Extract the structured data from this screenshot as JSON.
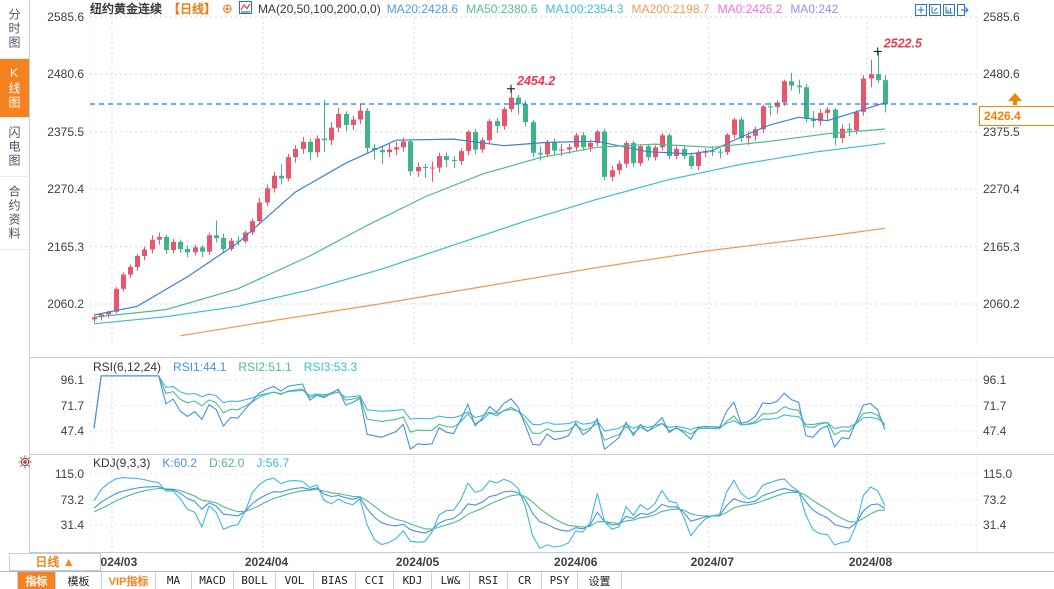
{
  "sidebar": {
    "items": [
      {
        "label": "分时图",
        "key": "time-chart",
        "active": false
      },
      {
        "label": "K线图",
        "key": "kline",
        "active": true
      },
      {
        "label": "闪电图",
        "key": "flash-chart",
        "active": false
      },
      {
        "label": "合约资料",
        "key": "contract-info",
        "active": false
      }
    ]
  },
  "header": {
    "title": "纽约黄金连续",
    "period_tag": "【日线】",
    "ma_formula": "MA(20,50,100,200,0,0)",
    "ma_labels": [
      {
        "text": "MA20:2428.6",
        "color": "#4f9cea"
      },
      {
        "text": "MA50:2380.6",
        "color": "#50c28e"
      },
      {
        "text": "MA100:2354.3",
        "color": "#3fc0d8"
      },
      {
        "text": "MA200:2198.7",
        "color": "#f59b51"
      },
      {
        "text": "MA0:2426.2",
        "color": "#ee71e4"
      },
      {
        "text": "MA0:242",
        "color": "#9b8cf0"
      }
    ],
    "toolbar_icons": [
      "crosshair-icon",
      "axis-zoom-icon",
      "axis-pan-icon",
      "exit-icon"
    ]
  },
  "chart_data": [
    {
      "type": "candlestick",
      "symbol": "纽约黄金连续",
      "interval": "日线",
      "price_axis": {
        "ticks": [
          2585.6,
          2480.6,
          2375.5,
          2270.4,
          2165.3,
          2060.2
        ]
      },
      "axis_tick_labels": [
        "2585.6",
        "2480.6",
        "2375.5",
        "2270.4",
        "2165.3",
        "2060.2"
      ],
      "x_labels": [
        "2024/03",
        "2024/04",
        "2024/05",
        "2024/06",
        "2024/07",
        "2024/08"
      ],
      "month_start_indices": [
        3,
        24,
        45,
        67,
        86,
        108
      ],
      "last_price": 2426.4,
      "last_price_label": "2426.4",
      "annotations": [
        {
          "text": "2454.2",
          "index": 58,
          "price": 2454.2
        },
        {
          "text": "2522.5",
          "index": 109,
          "price": 2522.5
        }
      ],
      "up_color": "#e8566b",
      "down_color": "#3db489",
      "candles": [
        [
          2032,
          2039,
          2026,
          2036
        ],
        [
          2036,
          2043,
          2030,
          2041
        ],
        [
          2041,
          2048,
          2035,
          2046
        ],
        [
          2046,
          2091,
          2043,
          2088
        ],
        [
          2088,
          2118,
          2083,
          2114
        ],
        [
          2114,
          2133,
          2108,
          2128
        ],
        [
          2128,
          2152,
          2121,
          2148
        ],
        [
          2148,
          2165,
          2140,
          2160
        ],
        [
          2160,
          2186,
          2153,
          2178
        ],
        [
          2178,
          2191,
          2169,
          2183
        ],
        [
          2183,
          2187,
          2152,
          2159
        ],
        [
          2159,
          2179,
          2153,
          2174
        ],
        [
          2174,
          2178,
          2154,
          2161
        ],
        [
          2161,
          2167,
          2146,
          2155
        ],
        [
          2155,
          2169,
          2149,
          2164
        ],
        [
          2164,
          2168,
          2146,
          2156
        ],
        [
          2156,
          2191,
          2150,
          2186
        ],
        [
          2186,
          2213,
          2173,
          2181
        ],
        [
          2181,
          2189,
          2154,
          2161
        ],
        [
          2161,
          2181,
          2157,
          2176
        ],
        [
          2176,
          2184,
          2167,
          2175
        ],
        [
          2175,
          2195,
          2171,
          2191
        ],
        [
          2191,
          2217,
          2186,
          2212
        ],
        [
          2212,
          2255,
          2207,
          2246
        ],
        [
          2246,
          2279,
          2239,
          2272
        ],
        [
          2272,
          2302,
          2264,
          2295
        ],
        [
          2295,
          2316,
          2279,
          2290
        ],
        [
          2290,
          2335,
          2285,
          2329
        ],
        [
          2329,
          2351,
          2319,
          2344
        ],
        [
          2344,
          2366,
          2335,
          2357
        ],
        [
          2357,
          2363,
          2323,
          2338
        ],
        [
          2338,
          2369,
          2329,
          2363
        ],
        [
          2363,
          2434,
          2339,
          2360
        ],
        [
          2360,
          2393,
          2351,
          2383
        ],
        [
          2383,
          2419,
          2375,
          2408
        ],
        [
          2408,
          2413,
          2377,
          2388
        ],
        [
          2388,
          2405,
          2379,
          2398
        ],
        [
          2398,
          2426,
          2389,
          2414
        ],
        [
          2414,
          2419,
          2337,
          2346
        ],
        [
          2346,
          2353,
          2325,
          2342
        ],
        [
          2342,
          2349,
          2317,
          2338
        ],
        [
          2338,
          2353,
          2329,
          2343
        ],
        [
          2343,
          2357,
          2333,
          2347
        ],
        [
          2347,
          2365,
          2339,
          2358
        ],
        [
          2358,
          2361,
          2295,
          2303
        ],
        [
          2303,
          2319,
          2293,
          2311
        ],
        [
          2311,
          2317,
          2291,
          2309
        ],
        [
          2309,
          2321,
          2284,
          2310
        ],
        [
          2310,
          2337,
          2301,
          2331
        ],
        [
          2331,
          2337,
          2311,
          2324
        ],
        [
          2324,
          2331,
          2309,
          2322
        ],
        [
          2322,
          2345,
          2315,
          2340
        ],
        [
          2340,
          2379,
          2333,
          2375
        ],
        [
          2375,
          2381,
          2335,
          2343
        ],
        [
          2343,
          2365,
          2337,
          2360
        ],
        [
          2360,
          2399,
          2353,
          2395
        ],
        [
          2395,
          2401,
          2373,
          2386
        ],
        [
          2386,
          2421,
          2379,
          2417
        ],
        [
          2417,
          2454.2,
          2411,
          2438
        ],
        [
          2438,
          2443,
          2407,
          2426
        ],
        [
          2426,
          2433,
          2385,
          2393
        ],
        [
          2393,
          2397,
          2329,
          2337
        ],
        [
          2337,
          2349,
          2323,
          2334
        ],
        [
          2334,
          2361,
          2329,
          2356
        ],
        [
          2356,
          2363,
          2333,
          2341
        ],
        [
          2341,
          2353,
          2331,
          2343
        ],
        [
          2343,
          2353,
          2335,
          2347
        ],
        [
          2347,
          2373,
          2341,
          2369
        ],
        [
          2369,
          2375,
          2341,
          2347
        ],
        [
          2347,
          2361,
          2339,
          2355
        ],
        [
          2355,
          2379,
          2349,
          2376
        ],
        [
          2376,
          2381,
          2287,
          2293
        ],
        [
          2293,
          2313,
          2285,
          2305
        ],
        [
          2305,
          2323,
          2297,
          2317
        ],
        [
          2317,
          2359,
          2309,
          2355
        ],
        [
          2355,
          2359,
          2311,
          2318
        ],
        [
          2318,
          2353,
          2313,
          2349
        ],
        [
          2349,
          2353,
          2323,
          2329
        ],
        [
          2329,
          2351,
          2323,
          2347
        ],
        [
          2347,
          2373,
          2341,
          2369
        ],
        [
          2369,
          2373,
          2325,
          2331
        ],
        [
          2331,
          2349,
          2325,
          2344
        ],
        [
          2344,
          2351,
          2325,
          2331
        ],
        [
          2331,
          2337,
          2307,
          2313
        ],
        [
          2313,
          2342,
          2305,
          2337
        ],
        [
          2337,
          2345,
          2329,
          2340
        ],
        [
          2340,
          2349,
          2331,
          2339
        ],
        [
          2339,
          2345,
          2327,
          2338
        ],
        [
          2338,
          2373,
          2333,
          2370
        ],
        [
          2370,
          2401,
          2363,
          2398
        ],
        [
          2398,
          2403,
          2357,
          2364
        ],
        [
          2364,
          2377,
          2351,
          2368
        ],
        [
          2368,
          2385,
          2359,
          2380
        ],
        [
          2380,
          2425,
          2373,
          2422
        ],
        [
          2422,
          2429,
          2405,
          2421
        ],
        [
          2421,
          2433,
          2409,
          2429
        ],
        [
          2429,
          2471,
          2423,
          2468
        ],
        [
          2468,
          2483,
          2451,
          2460
        ],
        [
          2460,
          2471,
          2445,
          2457
        ],
        [
          2457,
          2463,
          2393,
          2399
        ],
        [
          2399,
          2413,
          2383,
          2395
        ],
        [
          2395,
          2417,
          2387,
          2410
        ],
        [
          2410,
          2421,
          2395,
          2416
        ],
        [
          2416,
          2419,
          2351,
          2364
        ],
        [
          2364,
          2389,
          2355,
          2381
        ],
        [
          2381,
          2391,
          2367,
          2378
        ],
        [
          2378,
          2415,
          2371,
          2412
        ],
        [
          2412,
          2479,
          2405,
          2473
        ],
        [
          2473,
          2507,
          2457,
          2481
        ],
        [
          2481,
          2522.5,
          2465,
          2470
        ],
        [
          2470,
          2479,
          2411,
          2426.4
        ]
      ],
      "ma_lines": [
        {
          "name": "MA20",
          "color": "#3d7fd9",
          "points": [
            [
              0,
              2040
            ],
            [
              6,
              2056
            ],
            [
              13,
              2110
            ],
            [
              20,
              2172
            ],
            [
              28,
              2265
            ],
            [
              35,
              2318
            ],
            [
              42,
              2360
            ],
            [
              50,
              2362
            ],
            [
              57,
              2350
            ],
            [
              63,
              2356
            ],
            [
              70,
              2358
            ],
            [
              77,
              2339
            ],
            [
              83,
              2335
            ],
            [
              86,
              2341
            ],
            [
              90,
              2366
            ],
            [
              94,
              2388
            ],
            [
              98,
              2402
            ],
            [
              102,
              2396
            ],
            [
              106,
              2412
            ],
            [
              110,
              2428.6
            ]
          ]
        },
        {
          "name": "MA50",
          "color": "#4eba8c",
          "points": [
            [
              0,
              2036
            ],
            [
              10,
              2050
            ],
            [
              20,
              2088
            ],
            [
              30,
              2148
            ],
            [
              38,
              2204
            ],
            [
              46,
              2256
            ],
            [
              54,
              2298
            ],
            [
              62,
              2328
            ],
            [
              70,
              2347
            ],
            [
              78,
              2353
            ],
            [
              86,
              2347
            ],
            [
              94,
              2358
            ],
            [
              102,
              2372
            ],
            [
              110,
              2380.6
            ]
          ]
        },
        {
          "name": "MA100",
          "color": "#3fb9d0",
          "points": [
            [
              0,
              2024
            ],
            [
              10,
              2037
            ],
            [
              20,
              2056
            ],
            [
              30,
              2086
            ],
            [
              40,
              2124
            ],
            [
              50,
              2168
            ],
            [
              60,
              2212
            ],
            [
              70,
              2252
            ],
            [
              80,
              2288
            ],
            [
              90,
              2316
            ],
            [
              100,
              2338
            ],
            [
              110,
              2354.3
            ]
          ]
        },
        {
          "name": "MA200",
          "color": "#f0984c",
          "points": [
            [
              12,
              2002
            ],
            [
              25,
              2030
            ],
            [
              40,
              2061
            ],
            [
              55,
              2094
            ],
            [
              70,
              2127
            ],
            [
              85,
              2157
            ],
            [
              100,
              2181
            ],
            [
              110,
              2198.7
            ]
          ]
        }
      ]
    },
    {
      "type": "line",
      "title": "RSI(6,12,24)",
      "params": [
        6,
        12,
        24
      ],
      "axis_ticks": [
        96.1,
        71.7,
        47.4
      ],
      "axis_tick_labels": [
        "96.1",
        "71.7",
        "47.4"
      ],
      "derived_from": "RSI of chart_data[0].candles closes",
      "lines": [
        {
          "name": "RSI1",
          "value_label": "RSI1:44.1",
          "color": "#4a90e2"
        },
        {
          "name": "RSI2",
          "value_label": "RSI2:51.1",
          "color": "#4fbd8c"
        },
        {
          "name": "RSI3",
          "value_label": "RSI3:53.3",
          "color": "#3fb9d8"
        }
      ]
    },
    {
      "type": "line",
      "title": "KDJ(9,3,3)",
      "params": [
        9,
        3,
        3
      ],
      "axis_ticks": [
        115.0,
        73.2,
        31.4
      ],
      "axis_tick_labels": [
        "115.0",
        "73.2",
        "31.4"
      ],
      "derived_from": "KDJ of chart_data[0].candles",
      "lines": [
        {
          "name": "K",
          "value_label": "K:60.2",
          "color": "#4a90e2"
        },
        {
          "name": "D",
          "value_label": "D:62.0",
          "color": "#4fbd8c"
        },
        {
          "name": "J",
          "value_label": "J:56.7",
          "color": "#3fb9d8"
        }
      ]
    }
  ],
  "xaxis": {
    "period_label": "日线 ▲",
    "labels": [
      "2024/03",
      "2024/04",
      "2024/05",
      "2024/06",
      "2024/07",
      "2024/08"
    ]
  },
  "bottom_toolbar": {
    "tabs": [
      {
        "label": "指标",
        "key": "indicator",
        "state": "active"
      },
      {
        "label": "模板",
        "key": "template",
        "state": "normal"
      },
      {
        "label": "VIP指标",
        "key": "vip-indicator",
        "state": "vip"
      },
      {
        "label": "MA",
        "key": "ma",
        "state": "normal"
      },
      {
        "label": "MACD",
        "key": "macd",
        "state": "normal"
      },
      {
        "label": "BOLL",
        "key": "boll",
        "state": "normal"
      },
      {
        "label": "VOL",
        "key": "vol",
        "state": "normal"
      },
      {
        "label": "BIAS",
        "key": "bias",
        "state": "normal"
      },
      {
        "label": "CCI",
        "key": "cci",
        "state": "normal"
      },
      {
        "label": "KDJ",
        "key": "kdj",
        "state": "normal"
      },
      {
        "label": "LW&",
        "key": "lw",
        "state": "normal"
      },
      {
        "label": "RSI",
        "key": "rsi",
        "state": "normal"
      },
      {
        "label": "CR",
        "key": "cr",
        "state": "normal"
      },
      {
        "label": "PSY",
        "key": "psy",
        "state": "normal"
      },
      {
        "label": "设置",
        "key": "settings",
        "state": "normal"
      }
    ]
  },
  "colors": {
    "accent_orange": "#f5821f",
    "up": "#e8566b",
    "down": "#3db489",
    "current_price_line": "#2779e0",
    "annotation": "#e83a52",
    "grid": "#d0dae6",
    "separator": "#c3ccd8",
    "axis_text": "#3b3f46",
    "icon_blue": "#2a72c8"
  }
}
